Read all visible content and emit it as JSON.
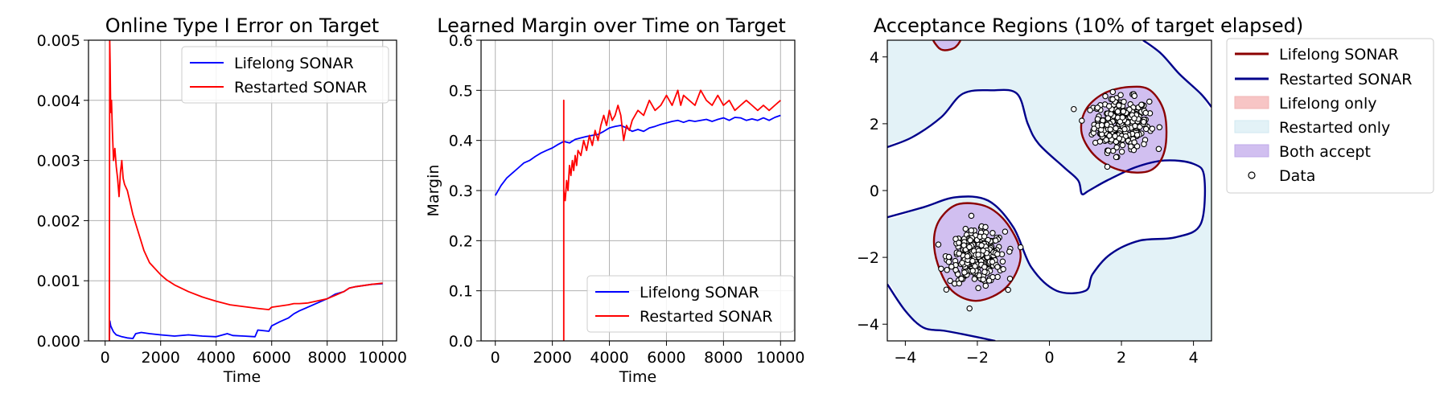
{
  "colors": {
    "lifelong": "#0000ff",
    "restarted": "#ff0000",
    "lifelong_contour": "#8b0000",
    "restarted_contour": "#00008b",
    "lifelong_only_fill": "#f7c5c5",
    "restarted_only_fill": "#e3f2f7",
    "both_fill": "#d1bff0"
  },
  "chart_data": [
    {
      "type": "line",
      "title": "Online Type I Error on Target",
      "xlabel": "Time",
      "ylabel": "",
      "xlim": [
        -600,
        10500
      ],
      "ylim": [
        0,
        0.005
      ],
      "xticks": [
        0,
        2000,
        4000,
        6000,
        8000,
        10000
      ],
      "xtick_labels": [
        "0",
        "2000",
        "4000",
        "6000",
        "8000",
        "10000"
      ],
      "yticks": [
        0,
        0.001,
        0.002,
        0.003,
        0.004,
        0.005
      ],
      "ytick_labels": [
        "0.000",
        "0.001",
        "0.002",
        "0.003",
        "0.004",
        "0.005"
      ],
      "legend_position": "top-right",
      "series": [
        {
          "name": "Lifelong SONAR",
          "x": [
            150,
            170,
            200,
            250,
            300,
            400,
            600,
            800,
            1000,
            1100,
            1300,
            1600,
            2000,
            2500,
            3000,
            3500,
            4000,
            4400,
            4600,
            5000,
            5400,
            5500,
            5900,
            6000,
            6300,
            6600,
            6800,
            7000,
            7300,
            7600,
            8000,
            8300,
            8600,
            8800,
            9000,
            9300,
            9600,
            10000
          ],
          "y": [
            0,
            0.00033,
            0.00025,
            0.0002,
            0.00015,
            0.0001,
            7e-05,
            5e-05,
            4e-05,
            0.00012,
            0.00014,
            0.00012,
            0.0001,
            8e-05,
            0.0001,
            8e-05,
            7e-05,
            0.00012,
            9e-05,
            8e-05,
            7e-05,
            0.00018,
            0.00016,
            0.00025,
            0.00032,
            0.00038,
            0.00045,
            0.0005,
            0.00056,
            0.00062,
            0.0007,
            0.00078,
            0.00082,
            0.00088,
            0.0009,
            0.00092,
            0.00094,
            0.00095
          ]
        },
        {
          "name": "Restarted SONAR",
          "x": [
            150,
            165,
            180,
            200,
            230,
            260,
            300,
            350,
            400,
            450,
            500,
            550,
            600,
            650,
            700,
            800,
            900,
            1000,
            1200,
            1400,
            1600,
            1800,
            2000,
            2200,
            2500,
            3000,
            3500,
            4000,
            4500,
            5000,
            5500,
            5900,
            6000,
            6300,
            6600,
            6800,
            7000,
            7300,
            7600,
            8000,
            8300,
            8600,
            8800,
            9000,
            9300,
            9600,
            10000
          ],
          "y": [
            0,
            0.005,
            0.0046,
            0.0038,
            0.004,
            0.0035,
            0.003,
            0.0032,
            0.0029,
            0.0027,
            0.0024,
            0.0028,
            0.003,
            0.0027,
            0.0026,
            0.0025,
            0.0023,
            0.0021,
            0.0018,
            0.0015,
            0.0013,
            0.0012,
            0.0011,
            0.00102,
            0.00093,
            0.00082,
            0.00073,
            0.00066,
            0.0006,
            0.00057,
            0.00054,
            0.00052,
            0.00056,
            0.00058,
            0.0006,
            0.00062,
            0.00062,
            0.00063,
            0.00066,
            0.0007,
            0.00076,
            0.00082,
            0.00088,
            0.0009,
            0.00092,
            0.00094,
            0.00096
          ]
        }
      ]
    },
    {
      "type": "line",
      "title": "Learned Margin over Time on Target",
      "xlabel": "Time",
      "ylabel": "Margin",
      "xlim": [
        -500,
        10500
      ],
      "ylim": [
        0,
        0.6
      ],
      "xticks": [
        0,
        2000,
        4000,
        6000,
        8000,
        10000
      ],
      "xtick_labels": [
        "0",
        "2000",
        "4000",
        "6000",
        "8000",
        "10000"
      ],
      "yticks": [
        0,
        0.1,
        0.2,
        0.3,
        0.4,
        0.5,
        0.6
      ],
      "ytick_labels": [
        "0.0",
        "0.1",
        "0.2",
        "0.3",
        "0.4",
        "0.5",
        "0.6"
      ],
      "legend_position": "bottom-right",
      "series": [
        {
          "name": "Lifelong SONAR",
          "x": [
            0,
            200,
            400,
            600,
            800,
            1000,
            1200,
            1400,
            1600,
            1800,
            2000,
            2200,
            2400,
            2600,
            2800,
            3000,
            3200,
            3400,
            3600,
            3800,
            4000,
            4200,
            4400,
            4600,
            4800,
            5000,
            5200,
            5400,
            5600,
            5800,
            6000,
            6200,
            6400,
            6600,
            6800,
            7000,
            7200,
            7400,
            7600,
            7800,
            8000,
            8200,
            8400,
            8600,
            8800,
            9000,
            9200,
            9400,
            9600,
            9800,
            10000
          ],
          "y": [
            0.29,
            0.31,
            0.325,
            0.335,
            0.345,
            0.355,
            0.36,
            0.368,
            0.375,
            0.38,
            0.385,
            0.392,
            0.398,
            0.395,
            0.402,
            0.405,
            0.408,
            0.41,
            0.412,
            0.418,
            0.425,
            0.428,
            0.43,
            0.425,
            0.418,
            0.422,
            0.418,
            0.425,
            0.428,
            0.432,
            0.435,
            0.438,
            0.44,
            0.436,
            0.44,
            0.438,
            0.44,
            0.442,
            0.438,
            0.442,
            0.445,
            0.44,
            0.446,
            0.445,
            0.44,
            0.443,
            0.44,
            0.445,
            0.44,
            0.446,
            0.45
          ]
        },
        {
          "name": "Restarted SONAR",
          "x": [
            2400,
            2400,
            2400,
            2450,
            2500,
            2550,
            2600,
            2650,
            2700,
            2750,
            2800,
            2850,
            2900,
            3000,
            3100,
            3200,
            3300,
            3400,
            3500,
            3600,
            3700,
            3800,
            3900,
            4000,
            4100,
            4200,
            4300,
            4400,
            4500,
            4600,
            4700,
            4800,
            5000,
            5200,
            5400,
            5600,
            5800,
            6000,
            6200,
            6400,
            6500,
            6600,
            6800,
            7000,
            7200,
            7400,
            7600,
            7800,
            8000,
            8200,
            8400,
            8600,
            8800,
            9000,
            9200,
            9400,
            9600,
            9800,
            10000
          ],
          "y": [
            0,
            0.48,
            0.3,
            0.28,
            0.32,
            0.3,
            0.35,
            0.33,
            0.36,
            0.34,
            0.37,
            0.35,
            0.38,
            0.37,
            0.4,
            0.38,
            0.41,
            0.39,
            0.42,
            0.4,
            0.43,
            0.45,
            0.43,
            0.46,
            0.44,
            0.45,
            0.47,
            0.45,
            0.4,
            0.43,
            0.42,
            0.44,
            0.46,
            0.45,
            0.48,
            0.46,
            0.47,
            0.49,
            0.47,
            0.5,
            0.47,
            0.49,
            0.48,
            0.47,
            0.5,
            0.48,
            0.47,
            0.49,
            0.47,
            0.48,
            0.46,
            0.47,
            0.48,
            0.47,
            0.46,
            0.47,
            0.46,
            0.47,
            0.48
          ]
        }
      ]
    },
    {
      "type": "contour",
      "title": "Acceptance Regions (10% of target elapsed)",
      "xlabel": "",
      "ylabel": "",
      "xlim": [
        -4.5,
        4.5
      ],
      "ylim": [
        -4.5,
        4.5
      ],
      "xticks": [
        -4,
        -2,
        0,
        2,
        4
      ],
      "xtick_labels": [
        "−4",
        "−2",
        "0",
        "2",
        "4"
      ],
      "yticks": [
        -4,
        -2,
        0,
        2,
        4
      ],
      "ytick_labels": [
        "−4",
        "−2",
        "0",
        "2",
        "4"
      ],
      "legend_position": "outside-right",
      "legend": [
        "Lifelong SONAR",
        "Restarted SONAR",
        "Lifelong only",
        "Restarted only",
        "Both accept",
        "Data"
      ],
      "clusters": [
        {
          "center": [
            2.0,
            2.0
          ],
          "spread": 0.38,
          "count": 300
        },
        {
          "center": [
            -2.0,
            -2.0
          ],
          "spread": 0.38,
          "count": 300
        }
      ],
      "lifelong_contours": [
        [
          [
            1.0,
            2.4
          ],
          [
            1.5,
            2.9
          ],
          [
            2.2,
            3.1
          ],
          [
            2.8,
            3.0
          ],
          [
            3.2,
            2.3
          ],
          [
            3.2,
            1.2
          ],
          [
            2.8,
            0.6
          ],
          [
            2.0,
            0.6
          ],
          [
            1.3,
            1.0
          ],
          [
            0.9,
            1.7
          ]
        ],
        [
          [
            -3.0,
            -0.8
          ],
          [
            -2.5,
            -0.4
          ],
          [
            -1.7,
            -0.5
          ],
          [
            -1.1,
            -1.1
          ],
          [
            -0.8,
            -2.0
          ],
          [
            -1.2,
            -2.9
          ],
          [
            -2.0,
            -3.3
          ],
          [
            -2.7,
            -3.0
          ],
          [
            -3.1,
            -2.2
          ],
          [
            -3.2,
            -1.4
          ]
        ],
        [
          [
            -3.2,
            4.6
          ],
          [
            -3.1,
            4.3
          ],
          [
            -2.9,
            4.2
          ],
          [
            -2.6,
            4.3
          ],
          [
            -2.5,
            4.6
          ]
        ]
      ],
      "restarted_boundary": [
        [
          [
            -4.5,
            1.3
          ],
          [
            -3.8,
            1.6
          ],
          [
            -3.0,
            2.2
          ],
          [
            -2.4,
            2.9
          ],
          [
            -1.6,
            3.0
          ],
          [
            -0.9,
            2.9
          ],
          [
            -0.6,
            2.0
          ],
          [
            -0.3,
            1.4
          ],
          [
            0.4,
            0.7
          ],
          [
            0.8,
            0.3
          ],
          [
            0.9,
            -0.1
          ],
          [
            1.1,
            0.0
          ],
          [
            1.6,
            0.3
          ],
          [
            2.4,
            0.7
          ],
          [
            3.2,
            0.9
          ],
          [
            4.0,
            0.8
          ],
          [
            4.3,
            0.4
          ],
          [
            4.2,
            -1.0
          ],
          [
            3.5,
            -1.4
          ],
          [
            2.5,
            -1.5
          ],
          [
            1.7,
            -1.9
          ],
          [
            1.2,
            -2.5
          ],
          [
            1.0,
            -3.0
          ],
          [
            0.2,
            -3.0
          ],
          [
            -0.5,
            -2.3
          ],
          [
            -1.0,
            -1.1
          ],
          [
            -1.7,
            -0.3
          ],
          [
            -2.6,
            -0.2
          ],
          [
            -3.5,
            -0.5
          ],
          [
            -4.5,
            -0.8
          ]
        ],
        [
          [
            -4.5,
            -2.8
          ],
          [
            -4.0,
            -3.6
          ],
          [
            -3.5,
            -4.1
          ],
          [
            -2.9,
            -4.2
          ],
          [
            -2.4,
            -4.3
          ],
          [
            -1.5,
            -4.5
          ]
        ],
        [
          [
            2.6,
            4.5
          ],
          [
            3.1,
            4.1
          ],
          [
            3.6,
            3.5
          ],
          [
            4.2,
            2.9
          ],
          [
            4.5,
            2.5
          ]
        ]
      ]
    }
  ]
}
